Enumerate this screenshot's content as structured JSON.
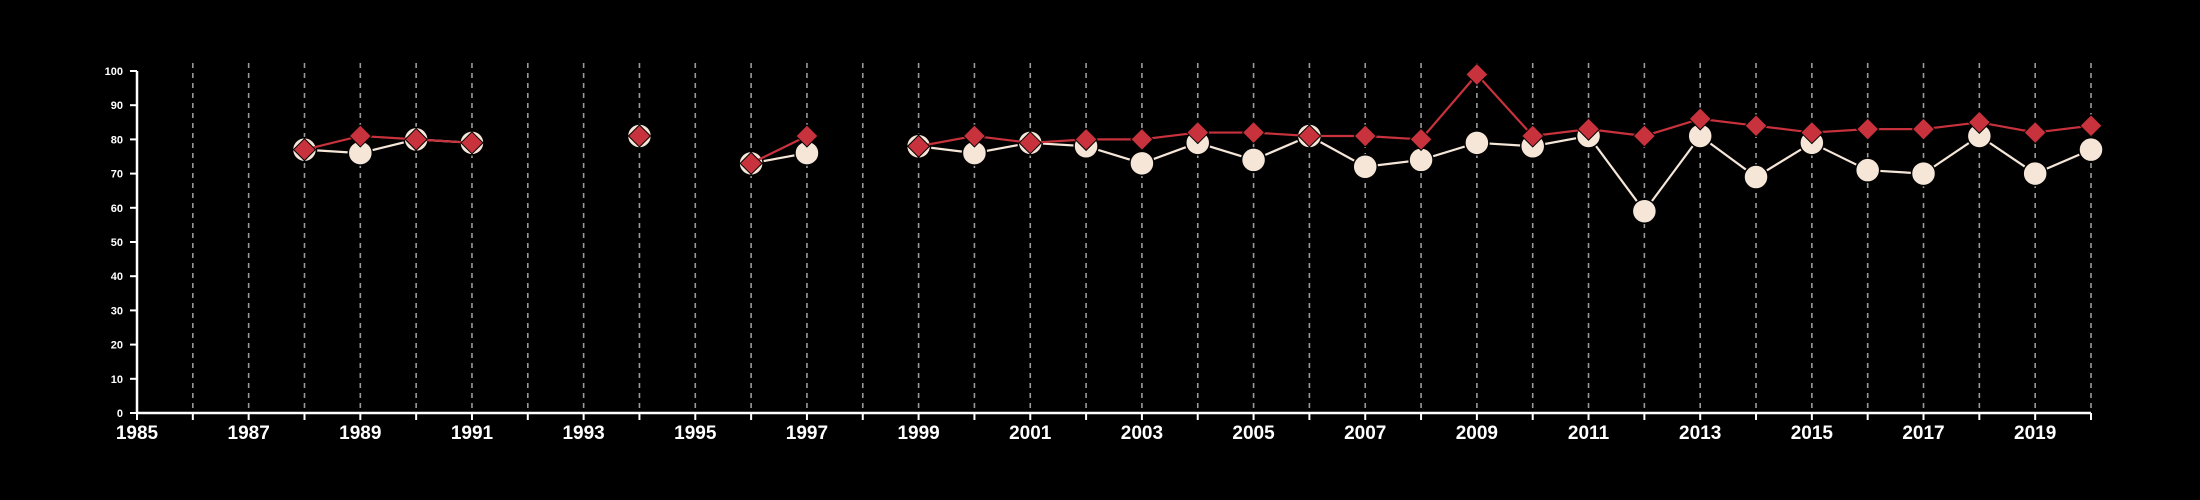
{
  "chart_data": {
    "type": "line",
    "title": "",
    "xlabel": "",
    "ylabel": "",
    "xlim": [
      1985,
      2020
    ],
    "ylim": [
      0,
      100
    ],
    "x_tick_labels": [
      "1985",
      "1987",
      "1989",
      "1991",
      "1993",
      "1995",
      "1997",
      "1999",
      "2001",
      "2003",
      "2005",
      "2007",
      "2009",
      "2011",
      "2013",
      "2015",
      "2017",
      "2019"
    ],
    "y_tick_labels": [
      "0",
      "10",
      "20",
      "30",
      "40",
      "50",
      "60",
      "70",
      "80",
      "90",
      "100"
    ],
    "grid": "vertical dashed lines at every year",
    "legend": "none",
    "series": [
      {
        "color": "#f5e6d8",
        "marker": "circle",
        "points": [
          {
            "x": 1988,
            "y": 77
          },
          {
            "x": 1989,
            "y": 76
          },
          {
            "x": 1990,
            "y": 80
          },
          {
            "x": 1991,
            "y": 79
          },
          {
            "x": 1994,
            "y": 81
          },
          {
            "x": 1996,
            "y": 73
          },
          {
            "x": 1997,
            "y": 76
          },
          {
            "x": 1999,
            "y": 78
          },
          {
            "x": 2000,
            "y": 76
          },
          {
            "x": 2001,
            "y": 79
          },
          {
            "x": 2002,
            "y": 78
          },
          {
            "x": 2003,
            "y": 73
          },
          {
            "x": 2004,
            "y": 79
          },
          {
            "x": 2005,
            "y": 74
          },
          {
            "x": 2006,
            "y": 81
          },
          {
            "x": 2007,
            "y": 72
          },
          {
            "x": 2008,
            "y": 74
          },
          {
            "x": 2009,
            "y": 79
          },
          {
            "x": 2010,
            "y": 78
          },
          {
            "x": 2011,
            "y": 81
          },
          {
            "x": 2012,
            "y": 59
          },
          {
            "x": 2013,
            "y": 81
          },
          {
            "x": 2014,
            "y": 69
          },
          {
            "x": 2015,
            "y": 79
          },
          {
            "x": 2016,
            "y": 71
          },
          {
            "x": 2017,
            "y": 70
          },
          {
            "x": 2018,
            "y": 81
          },
          {
            "x": 2019,
            "y": 70
          },
          {
            "x": 2020,
            "y": 77
          }
        ]
      },
      {
        "color": "#c8323c",
        "marker": "diamond",
        "points": [
          {
            "x": 1988,
            "y": 77
          },
          {
            "x": 1989,
            "y": 81
          },
          {
            "x": 1990,
            "y": 80
          },
          {
            "x": 1991,
            "y": 79
          },
          {
            "x": 1994,
            "y": 81
          },
          {
            "x": 1996,
            "y": 73
          },
          {
            "x": 1997,
            "y": 81
          },
          {
            "x": 1999,
            "y": 78
          },
          {
            "x": 2000,
            "y": 81
          },
          {
            "x": 2001,
            "y": 79
          },
          {
            "x": 2002,
            "y": 80
          },
          {
            "x": 2003,
            "y": 80
          },
          {
            "x": 2004,
            "y": 82
          },
          {
            "x": 2005,
            "y": 82
          },
          {
            "x": 2006,
            "y": 81
          },
          {
            "x": 2007,
            "y": 81
          },
          {
            "x": 2008,
            "y": 80
          },
          {
            "x": 2009,
            "y": 99
          },
          {
            "x": 2010,
            "y": 81
          },
          {
            "x": 2011,
            "y": 83
          },
          {
            "x": 2012,
            "y": 81
          },
          {
            "x": 2013,
            "y": 86
          },
          {
            "x": 2014,
            "y": 84
          },
          {
            "x": 2015,
            "y": 82
          },
          {
            "x": 2016,
            "y": 83
          },
          {
            "x": 2017,
            "y": 83
          },
          {
            "x": 2018,
            "y": 85
          },
          {
            "x": 2019,
            "y": 82
          },
          {
            "x": 2020,
            "y": 84
          }
        ]
      }
    ]
  }
}
